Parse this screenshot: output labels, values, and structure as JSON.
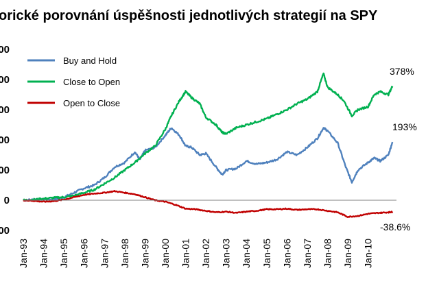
{
  "chart_data": {
    "type": "line",
    "title": "orické porovnání úspěšnosti jednotlivých strategií na SPY",
    "y_tick_labels": [
      "00",
      "00",
      "00",
      "00",
      "00",
      "0",
      "00"
    ],
    "y_tick_values": [
      500,
      400,
      300,
      200,
      100,
      0,
      -100
    ],
    "ylim": [
      -100,
      500
    ],
    "x_tick_labels": [
      "Jan-93",
      "Jan-94",
      "Jan-95",
      "Jan-96",
      "Jan-97",
      "Jan-98",
      "Jan-99",
      "Jan-00",
      "Jan-01",
      "Jan-02",
      "Jan-03",
      "Jan-04",
      "Jan-05",
      "Jan-06",
      "Jan-07",
      "Jan-08",
      "Jan-09",
      "Jan-10"
    ],
    "xlim": [
      1993.0,
      2011.4
    ],
    "grid": false,
    "legend_position": "top-left",
    "series": [
      {
        "name": "Buy and Hold",
        "color": "#4f81bd",
        "end_label": "193%",
        "x": [
          1993.0,
          1993.5,
          1994.0,
          1994.5,
          1995.0,
          1995.5,
          1996.0,
          1996.5,
          1997.0,
          1997.5,
          1998.0,
          1998.5,
          1998.75,
          1999.0,
          1999.5,
          2000.0,
          2000.3,
          2000.7,
          2001.0,
          2001.3,
          2001.7,
          2002.0,
          2002.5,
          2002.8,
          2003.0,
          2003.5,
          2004.0,
          2004.5,
          2005.0,
          2005.5,
          2006.0,
          2006.5,
          2007.0,
          2007.5,
          2007.8,
          2008.0,
          2008.5,
          2008.9,
          2009.2,
          2009.5,
          2010.0,
          2010.3,
          2010.6,
          2011.0,
          2011.2
        ],
        "y": [
          0,
          2,
          3,
          2,
          10,
          25,
          40,
          50,
          75,
          110,
          125,
          160,
          135,
          165,
          175,
          215,
          240,
          215,
          180,
          175,
          150,
          155,
          110,
          85,
          100,
          105,
          130,
          120,
          125,
          135,
          160,
          150,
          175,
          205,
          240,
          230,
          190,
          110,
          60,
          100,
          125,
          140,
          130,
          150,
          193
        ]
      },
      {
        "name": "Close to Open",
        "color": "#00b050",
        "end_label": "378%",
        "x": [
          1993.0,
          1993.5,
          1994.0,
          1994.5,
          1995.0,
          1995.5,
          1996.0,
          1996.5,
          1997.0,
          1997.5,
          1998.0,
          1998.5,
          1999.0,
          1999.5,
          2000.0,
          2000.3,
          2000.7,
          2001.0,
          2001.3,
          2001.7,
          2002.0,
          2002.5,
          2002.8,
          2003.0,
          2003.5,
          2004.0,
          2004.5,
          2005.0,
          2005.5,
          2006.0,
          2006.5,
          2007.0,
          2007.5,
          2007.8,
          2008.0,
          2008.5,
          2008.8,
          2009.2,
          2009.5,
          2010.0,
          2010.3,
          2010.6,
          2011.0,
          2011.2
        ],
        "y": [
          0,
          2,
          5,
          8,
          10,
          15,
          25,
          35,
          55,
          75,
          100,
          125,
          155,
          180,
          235,
          280,
          330,
          360,
          340,
          320,
          275,
          250,
          225,
          220,
          240,
          250,
          260,
          270,
          285,
          300,
          320,
          335,
          360,
          420,
          375,
          350,
          330,
          280,
          300,
          310,
          350,
          360,
          350,
          378
        ]
      },
      {
        "name": "Open to Close",
        "color": "#c00000",
        "end_label": "-38.6%",
        "x": [
          1993.0,
          1993.5,
          1994.0,
          1994.5,
          1995.0,
          1995.5,
          1996.0,
          1996.5,
          1997.0,
          1997.5,
          1998.0,
          1998.5,
          1999.0,
          1999.5,
          2000.0,
          2000.5,
          2001.0,
          2001.5,
          2002.0,
          2002.5,
          2003.0,
          2003.5,
          2004.0,
          2004.5,
          2005.0,
          2005.5,
          2006.0,
          2006.5,
          2007.0,
          2007.5,
          2008.0,
          2008.5,
          2009.0,
          2009.5,
          2010.0,
          2010.5,
          2011.0,
          2011.2
        ],
        "y": [
          0,
          -2,
          -5,
          -3,
          2,
          10,
          18,
          22,
          25,
          30,
          25,
          20,
          10,
          0,
          -5,
          -15,
          -28,
          -30,
          -35,
          -40,
          -38,
          -42,
          -38,
          -35,
          -30,
          -30,
          -28,
          -32,
          -30,
          -30,
          -35,
          -40,
          -55,
          -52,
          -45,
          -42,
          -40,
          -38.6
        ]
      }
    ]
  }
}
